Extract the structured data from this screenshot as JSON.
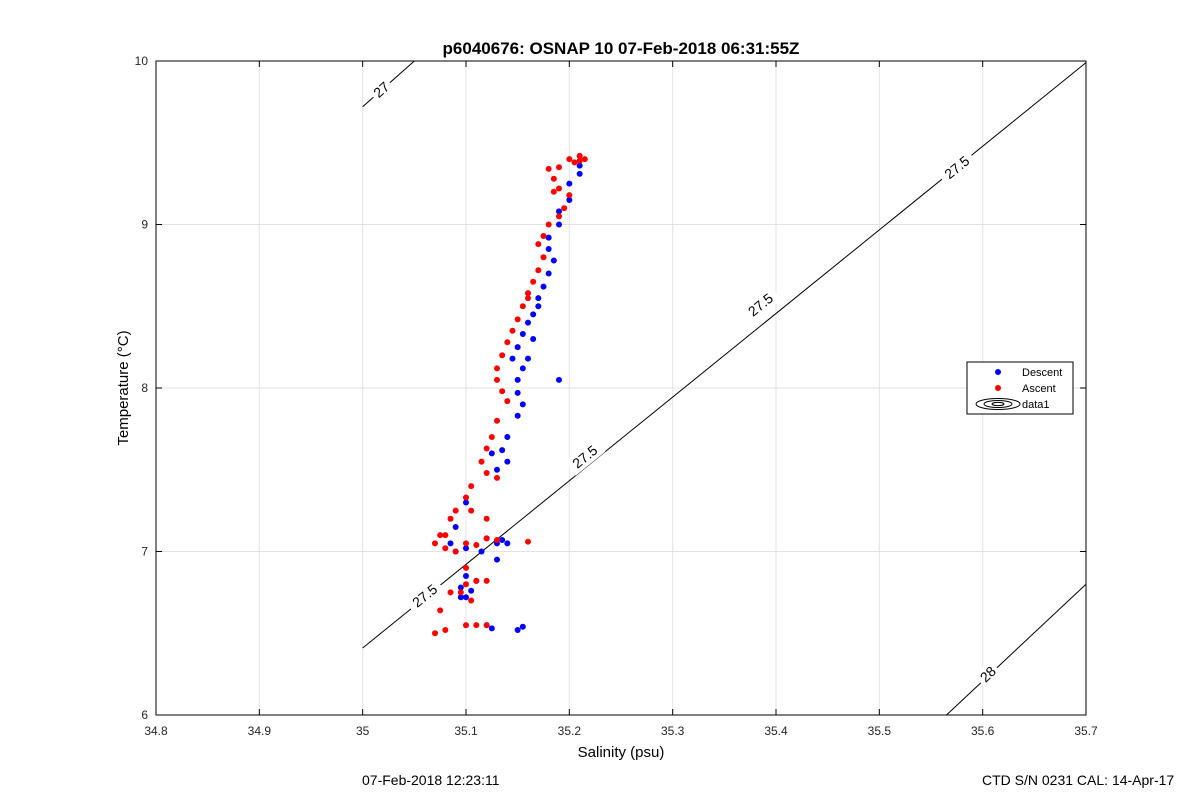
{
  "chart_data": {
    "type": "scatter",
    "title": "p6040676: OSNAP 10 07-Feb-2018 06:31:55Z",
    "xlabel": "Salinity (psu)",
    "ylabel": "Temperature (°C)",
    "xlim": [
      34.8,
      35.7
    ],
    "ylim": [
      6,
      10
    ],
    "xticks": [
      "34.8",
      "34.9",
      "35",
      "35.1",
      "35.2",
      "35.3",
      "35.4",
      "35.5",
      "35.6",
      "35.7"
    ],
    "yticks": [
      "6",
      "7",
      "8",
      "9",
      "10"
    ],
    "grid": true,
    "legend_position": "right",
    "legend": [
      {
        "label": "Descent",
        "color": "#0000ff",
        "marker": "point"
      },
      {
        "label": "Ascent",
        "color": "#ff0000",
        "marker": "point"
      },
      {
        "label": "data1",
        "color": "#000000",
        "marker": "contour"
      }
    ],
    "contours": [
      {
        "label": "27",
        "points": [
          [
            35.0,
            9.72
          ],
          [
            35.05,
            10.0
          ]
        ],
        "label_at": [
          35.018,
          9.825
        ]
      },
      {
        "label": "27.5",
        "points": [
          [
            35.0,
            6.41
          ],
          [
            35.7,
            9.99
          ]
        ],
        "label_positions": [
          [
            35.06,
            6.73
          ],
          [
            35.215,
            7.58
          ],
          [
            35.385,
            8.51
          ],
          [
            35.575,
            9.35
          ]
        ]
      },
      {
        "label": "28",
        "points": [
          [
            35.565,
            6.0
          ],
          [
            35.7,
            6.8
          ]
        ],
        "label_at": [
          35.605,
          6.25
        ]
      }
    ],
    "series": [
      {
        "name": "Descent",
        "color": "#0000ff",
        "points": [
          [
            35.21,
            9.36
          ],
          [
            35.21,
            9.31
          ],
          [
            35.2,
            9.25
          ],
          [
            35.2,
            9.15
          ],
          [
            35.19,
            9.08
          ],
          [
            35.19,
            9.0
          ],
          [
            35.18,
            8.92
          ],
          [
            35.18,
            8.85
          ],
          [
            35.185,
            8.78
          ],
          [
            35.18,
            8.7
          ],
          [
            35.175,
            8.62
          ],
          [
            35.17,
            8.55
          ],
          [
            35.165,
            8.45
          ],
          [
            35.16,
            8.4
          ],
          [
            35.155,
            8.33
          ],
          [
            35.15,
            8.25
          ],
          [
            35.145,
            8.18
          ],
          [
            35.155,
            8.12
          ],
          [
            35.15,
            8.05
          ],
          [
            35.15,
            7.97
          ],
          [
            35.155,
            7.9
          ],
          [
            35.15,
            7.83
          ],
          [
            35.14,
            7.7
          ],
          [
            35.135,
            7.62
          ],
          [
            35.14,
            7.55
          ],
          [
            35.13,
            7.5
          ],
          [
            35.125,
            7.6
          ],
          [
            35.1,
            7.3
          ],
          [
            35.09,
            7.15
          ],
          [
            35.085,
            7.05
          ],
          [
            35.09,
            7.0
          ],
          [
            35.1,
            7.02
          ],
          [
            35.12,
            7.08
          ],
          [
            35.13,
            7.05
          ],
          [
            35.135,
            7.07
          ],
          [
            35.14,
            7.05
          ],
          [
            35.1,
            6.85
          ],
          [
            35.095,
            6.78
          ],
          [
            35.1,
            6.72
          ],
          [
            35.105,
            6.76
          ],
          [
            35.095,
            6.72
          ],
          [
            35.12,
            6.55
          ],
          [
            35.125,
            6.53
          ],
          [
            35.15,
            6.52
          ],
          [
            35.155,
            6.54
          ],
          [
            35.19,
            8.05
          ],
          [
            35.115,
            7.0
          ],
          [
            35.11,
            6.82
          ],
          [
            35.13,
            6.95
          ],
          [
            35.17,
            8.5
          ],
          [
            35.165,
            8.3
          ],
          [
            35.16,
            8.18
          ]
        ]
      },
      {
        "name": "Ascent",
        "color": "#ff0000",
        "points": [
          [
            35.21,
            9.42
          ],
          [
            35.205,
            9.38
          ],
          [
            35.2,
            9.4
          ],
          [
            35.21,
            9.39
          ],
          [
            35.215,
            9.4
          ],
          [
            35.19,
            9.35
          ],
          [
            35.185,
            9.28
          ],
          [
            35.19,
            9.22
          ],
          [
            35.2,
            9.18
          ],
          [
            35.195,
            9.1
          ],
          [
            35.19,
            9.05
          ],
          [
            35.18,
            9.0
          ],
          [
            35.175,
            8.93
          ],
          [
            35.17,
            8.88
          ],
          [
            35.175,
            8.8
          ],
          [
            35.17,
            8.72
          ],
          [
            35.165,
            8.65
          ],
          [
            35.16,
            8.58
          ],
          [
            35.155,
            8.5
          ],
          [
            35.15,
            8.42
          ],
          [
            35.145,
            8.35
          ],
          [
            35.14,
            8.28
          ],
          [
            35.135,
            8.2
          ],
          [
            35.13,
            8.12
          ],
          [
            35.13,
            8.05
          ],
          [
            35.135,
            7.98
          ],
          [
            35.14,
            7.92
          ],
          [
            35.13,
            7.8
          ],
          [
            35.125,
            7.7
          ],
          [
            35.12,
            7.63
          ],
          [
            35.115,
            7.55
          ],
          [
            35.12,
            7.48
          ],
          [
            35.105,
            7.4
          ],
          [
            35.1,
            7.33
          ],
          [
            35.09,
            7.25
          ],
          [
            35.085,
            7.2
          ],
          [
            35.075,
            7.1
          ],
          [
            35.07,
            7.05
          ],
          [
            35.08,
            7.02
          ],
          [
            35.09,
            7.0
          ],
          [
            35.1,
            7.05
          ],
          [
            35.11,
            7.04
          ],
          [
            35.12,
            7.08
          ],
          [
            35.13,
            7.07
          ],
          [
            35.16,
            7.06
          ],
          [
            35.1,
            6.9
          ],
          [
            35.1,
            6.8
          ],
          [
            35.095,
            6.75
          ],
          [
            35.105,
            6.7
          ],
          [
            35.11,
            6.82
          ],
          [
            35.12,
            6.82
          ],
          [
            35.085,
            6.75
          ],
          [
            35.075,
            6.64
          ],
          [
            35.07,
            6.5
          ],
          [
            35.08,
            6.52
          ],
          [
            35.1,
            6.55
          ],
          [
            35.11,
            6.55
          ],
          [
            35.12,
            6.55
          ],
          [
            35.18,
            9.34
          ],
          [
            35.185,
            9.2
          ],
          [
            35.16,
            8.55
          ],
          [
            35.12,
            7.2
          ],
          [
            35.13,
            7.45
          ],
          [
            35.105,
            7.25
          ],
          [
            35.08,
            7.1
          ]
        ]
      }
    ]
  },
  "footer": {
    "left": "07-Feb-2018 12:23:11",
    "right": "CTD S/N 0231  CAL: 14-Apr-17"
  }
}
